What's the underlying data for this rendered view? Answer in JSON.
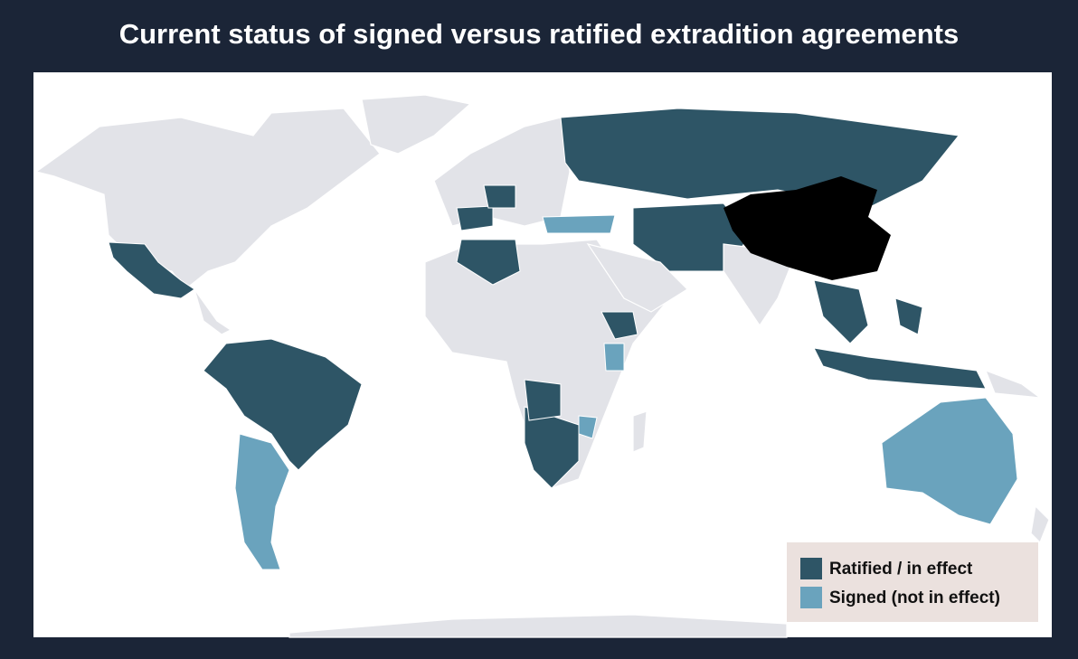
{
  "title": "Current status of signed versus ratified extradition agreements",
  "legend": [
    {
      "label": "Ratified / in effect",
      "color": "#2e5566"
    },
    {
      "label": "Signed (not in effect)",
      "color": "#6aa3bd"
    }
  ]
}
